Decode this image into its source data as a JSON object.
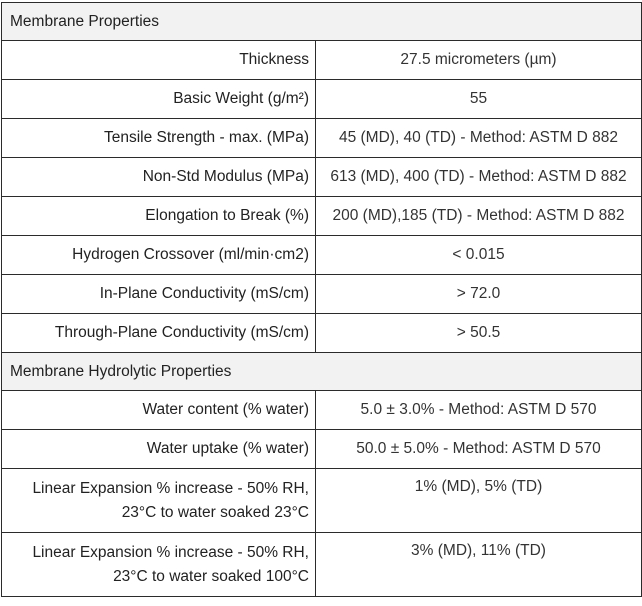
{
  "sections": [
    {
      "title": "Membrane Properties",
      "rows": [
        {
          "label": "Thickness",
          "value": "27.5 micrometers (µm)"
        },
        {
          "label": "Basic Weight (g/m²)",
          "value": "55"
        },
        {
          "label": "Tensile Strength - max. (MPa)",
          "value": "45 (MD), 40 (TD) - Method: ASTM D 882"
        },
        {
          "label": "Non-Std Modulus (MPa)",
          "value": "613 (MD), 400 (TD) - Method: ASTM D 882"
        },
        {
          "label": "Elongation to Break (%)",
          "value": "200 (MD),185 (TD) - Method: ASTM D 882"
        },
        {
          "label": "Hydrogen Crossover (ml/min·cm2)",
          "value": "< 0.015"
        },
        {
          "label": "In-Plane Conductivity (mS/cm)",
          "value": "> 72.0"
        },
        {
          "label": "Through-Plane Conductivity (mS/cm)",
          "value": "> 50.5"
        }
      ]
    },
    {
      "title": "Membrane Hydrolytic Properties",
      "rows": [
        {
          "label": "Water content (% water)",
          "value": "5.0 ± 3.0% - Method: ASTM D 570"
        },
        {
          "label": "Water uptake (% water)",
          "value": "50.0 ± 5.0% - Method: ASTM D 570"
        },
        {
          "label_line1": "Linear Expansion % increase - 50% RH,",
          "label_line2": "23°C to water soaked 23°C",
          "value": "1% (MD), 5% (TD)"
        },
        {
          "label_line1": "Linear Expansion % increase - 50% RH,",
          "label_line2": "23°C to water soaked 100°C",
          "value": "3% (MD), 11% (TD)"
        }
      ]
    }
  ]
}
